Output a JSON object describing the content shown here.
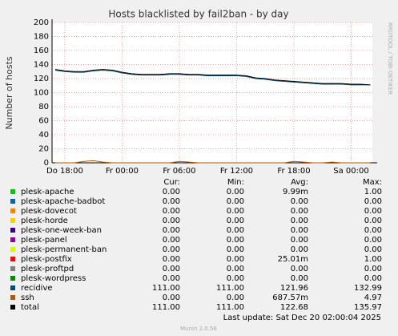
{
  "chart_data": {
    "type": "line",
    "title": "Hosts blacklisted by fail2ban - by day",
    "ylabel": "Number of hosts",
    "watermark": "RRDTOOL / TOBI OETIKER",
    "categories": [
      null,
      "Do 18:00",
      null,
      null,
      null,
      null,
      null,
      "Fr 00:00",
      null,
      null,
      null,
      null,
      null,
      "Fr 06:00",
      null,
      null,
      null,
      null,
      null,
      "Fr 12:00",
      null,
      null,
      null,
      null,
      null,
      "Fr 18:00",
      null,
      null,
      null,
      null,
      null,
      "Sa 00:00",
      null,
      null
    ],
    "series": [
      {
        "name": "ssh",
        "color": "#b35a00",
        "values": [
          0,
          0,
          0,
          2,
          3,
          1,
          0,
          0,
          0,
          0,
          0,
          0,
          0,
          2,
          1,
          0,
          0,
          0,
          0,
          0,
          0,
          0,
          0,
          0,
          0,
          2,
          1,
          0,
          0,
          1,
          0,
          0,
          0,
          0
        ]
      },
      {
        "name": "recidive",
        "color": "#00487d",
        "values": [
          132,
          130,
          129,
          129,
          131,
          132,
          131,
          128,
          126,
          125,
          125,
          125,
          126,
          126,
          125,
          125,
          124,
          124,
          124,
          124,
          123,
          120,
          119,
          117,
          116,
          115,
          114,
          113,
          112,
          112,
          112,
          111,
          111,
          111
        ]
      },
      {
        "name": "total",
        "color": "#000000",
        "values": [
          133,
          131,
          130,
          130,
          132,
          133,
          132,
          129,
          127,
          126,
          126,
          126,
          127,
          127,
          126,
          126,
          125,
          125,
          125,
          125,
          124,
          121,
          120,
          118,
          117,
          116,
          115,
          114,
          113,
          113,
          113,
          112,
          112,
          111
        ]
      }
    ],
    "ylim": [
      0,
      200
    ],
    "yticks": [
      0,
      20,
      40,
      60,
      80,
      100,
      120,
      140,
      160,
      180,
      200
    ],
    "grid": true
  },
  "legend": {
    "headers": [
      "Cur:",
      "Min:",
      "Avg:",
      "Max:"
    ],
    "rows": [
      {
        "name": "plesk-apache",
        "color": "#00cc00",
        "cells": [
          "0.00",
          "0.00",
          "9.99m",
          "1.00"
        ]
      },
      {
        "name": "plesk-apache-badbot",
        "color": "#0066b3",
        "cells": [
          "0.00",
          "0.00",
          "0.00",
          "0.00"
        ]
      },
      {
        "name": "plesk-dovecot",
        "color": "#ff8000",
        "cells": [
          "0.00",
          "0.00",
          "0.00",
          "0.00"
        ]
      },
      {
        "name": "plesk-horde",
        "color": "#ffcc00",
        "cells": [
          "0.00",
          "0.00",
          "0.00",
          "0.00"
        ]
      },
      {
        "name": "plesk-one-week-ban",
        "color": "#330099",
        "cells": [
          "0.00",
          "0.00",
          "0.00",
          "0.00"
        ]
      },
      {
        "name": "plesk-panel",
        "color": "#990099",
        "cells": [
          "0.00",
          "0.00",
          "0.00",
          "0.00"
        ]
      },
      {
        "name": "plesk-permanent-ban",
        "color": "#ccff00",
        "cells": [
          "0.00",
          "0.00",
          "0.00",
          "0.00"
        ]
      },
      {
        "name": "plesk-postfix",
        "color": "#ff0000",
        "cells": [
          "0.00",
          "0.00",
          "25.01m",
          "1.00"
        ]
      },
      {
        "name": "plesk-proftpd",
        "color": "#808080",
        "cells": [
          "0.00",
          "0.00",
          "0.00",
          "0.00"
        ]
      },
      {
        "name": "plesk-wordpress",
        "color": "#008f00",
        "cells": [
          "0.00",
          "0.00",
          "0.00",
          "0.00"
        ]
      },
      {
        "name": "recidive",
        "color": "#00487d",
        "cells": [
          "111.00",
          "111.00",
          "121.96",
          "132.99"
        ]
      },
      {
        "name": "ssh",
        "color": "#b35a00",
        "cells": [
          "0.00",
          "0.00",
          "687.57m",
          "4.97"
        ]
      },
      {
        "name": "total",
        "color": "#000000",
        "cells": [
          "111.00",
          "111.00",
          "122.68",
          "135.97"
        ]
      }
    ],
    "last_update": "Last update: Sat Dec 20 02:00:04 2025",
    "footer": "Munin 2.0.56"
  }
}
